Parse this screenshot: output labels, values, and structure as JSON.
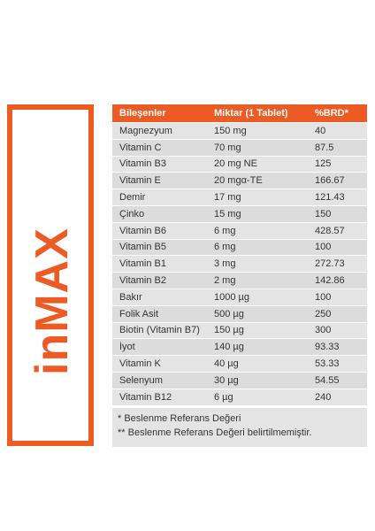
{
  "brand": {
    "logo_text": "inMAX",
    "accent_color": "#ee5a24"
  },
  "table": {
    "headers": [
      "Bileşenler",
      "Miktar (1 Tablet)",
      "%BRD*"
    ],
    "rows": [
      [
        "Magnezyum",
        "150 mg",
        "40"
      ],
      [
        "Vitamin C",
        "70 mg",
        "87.5"
      ],
      [
        "Vitamin B3",
        "20 mg NE",
        "125"
      ],
      [
        "Vitamin E",
        "20 mgα-TE",
        "166.67"
      ],
      [
        "Demir",
        "17 mg",
        "121.43"
      ],
      [
        "Çinko",
        "15 mg",
        "150"
      ],
      [
        "Vitamin B6",
        "6 mg",
        "428.57"
      ],
      [
        "Vitamin B5",
        "6 mg",
        "100"
      ],
      [
        "Vitamin B1",
        "3 mg",
        "272.73"
      ],
      [
        "Vitamin B2",
        "2 mg",
        "142.86"
      ],
      [
        "Bakır",
        "1000 µg",
        "100"
      ],
      [
        "Folik Asit",
        "500 µg",
        "250"
      ],
      [
        "Biotin (Vitamin B7)",
        "150 µg",
        "300"
      ],
      [
        "İyot",
        "140 µg",
        "93.33"
      ],
      [
        "Vitamin K",
        "40 µg",
        "53.33"
      ],
      [
        "Selenyum",
        "30 µg",
        "54.55"
      ],
      [
        "Vitamin B12",
        "6 µg",
        "240"
      ]
    ]
  },
  "notes": [
    "*  Beslenme Referans Değeri",
    "** Beslenme Referans Değeri belirtilmemiştir."
  ]
}
